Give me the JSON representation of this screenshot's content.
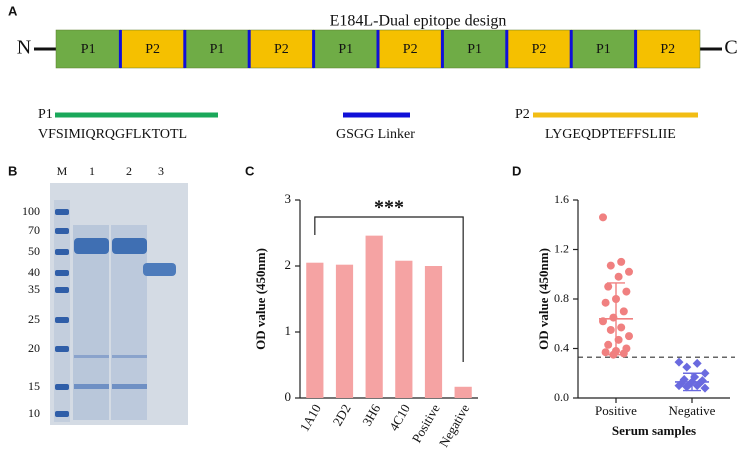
{
  "diagram": {
    "panel": "A",
    "title": "E184L-Dual epitope design",
    "n_label": "N",
    "c_label": "C",
    "segments": [
      "P1",
      "P2",
      "P1",
      "P2",
      "P1",
      "P2",
      "P1",
      "P2",
      "P1",
      "P2"
    ],
    "legend": [
      {
        "key": "P1",
        "sequence": "VFSIMIQRQGFLKTOTL"
      },
      {
        "sequence": "GSGG Linker"
      },
      {
        "key": "P2",
        "sequence": "LYGEQDPTEFFSLIIE"
      }
    ]
  },
  "gel": {
    "panel": "B",
    "lanes": [
      "M",
      "1",
      "2",
      "3"
    ],
    "ladder": [
      100,
      70,
      50,
      40,
      35,
      25,
      20,
      15,
      10
    ]
  },
  "chart_data": [
    {
      "type": "bar",
      "panel": "C",
      "y_label": "OD value (450nm)",
      "annotation": "***",
      "categories": [
        "1A10",
        "2D2",
        "3H6",
        "4C10",
        "Positive",
        "Negative"
      ],
      "values": [
        2.05,
        2.02,
        2.46,
        2.08,
        2.0,
        0.17
      ],
      "color": "#f5a3a3",
      "ylim": [
        0,
        3
      ],
      "yticks": [
        0,
        1,
        2,
        3
      ]
    },
    {
      "type": "strip",
      "panel": "D",
      "y_label": "OD value (450nm)",
      "x_label": "Serum samples",
      "categories": [
        "Positive",
        "Negative"
      ],
      "threshold": 0.33,
      "series": [
        {
          "color": "#f08080",
          "marker": "circle",
          "mean": 0.64,
          "error": 0.29,
          "values": [
            1.46,
            1.1,
            1.07,
            1.02,
            0.98,
            0.9,
            0.86,
            0.8,
            0.77,
            0.7,
            0.65,
            0.62,
            0.57,
            0.55,
            0.5,
            0.47,
            0.43,
            0.4,
            0.38,
            0.37,
            0.36,
            0.35
          ]
        },
        {
          "color": "#6a6adf",
          "marker": "diamond",
          "mean": 0.13,
          "error": 0.07,
          "values": [
            0.29,
            0.28,
            0.25,
            0.2,
            0.17,
            0.15,
            0.14,
            0.13,
            0.12,
            0.12,
            0.11,
            0.1,
            0.1,
            0.09,
            0.08
          ]
        }
      ],
      "ylim": [
        0,
        1.6
      ],
      "yticks": [
        {
          "value": 0,
          "label": "0.0"
        },
        0.4,
        0.8,
        1.2,
        1.6
      ]
    }
  ]
}
